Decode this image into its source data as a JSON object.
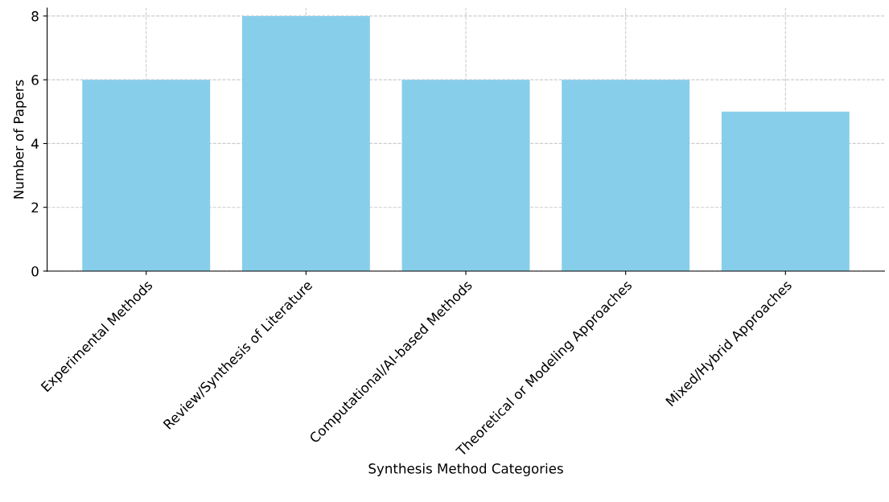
{
  "chart_data": {
    "type": "bar",
    "xlabel": "Synthesis Method Categories",
    "ylabel": "Number of Papers",
    "categories": [
      "Experimental Methods",
      "Review/Synthesis of Literature",
      "Computational/AI-based Methods",
      "Theoretical or Modeling Approaches",
      "Mixed/Hybrid Approaches"
    ],
    "values": [
      6,
      8,
      6,
      6,
      5
    ],
    "color": "#87ceeb",
    "ylim": [
      0,
      8.25
    ],
    "yticks": [
      0,
      2,
      4,
      6,
      8
    ],
    "grid": true
  }
}
